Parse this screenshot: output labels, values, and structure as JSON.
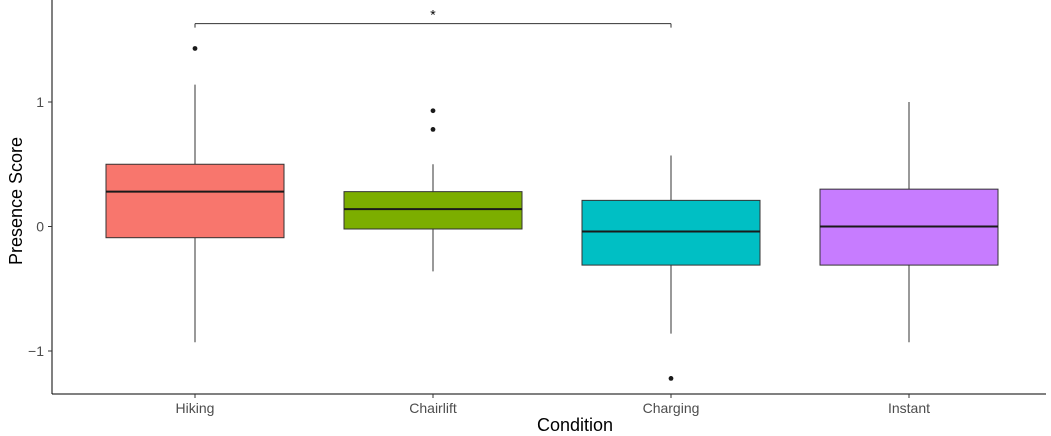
{
  "chart_data": {
    "type": "boxplot",
    "xlabel": "Condition",
    "ylabel": "Presence Score",
    "categories": [
      "Hiking",
      "Chairlift",
      "Charging",
      "Instant"
    ],
    "ylim": [
      -1.35,
      1.8
    ],
    "yticks": [
      {
        "value": -1,
        "label": "−1"
      },
      {
        "value": 0,
        "label": "0"
      },
      {
        "value": 1,
        "label": "1"
      }
    ],
    "boxes": [
      {
        "category": "Hiking",
        "whisker_low": -0.93,
        "q1": -0.09,
        "median": 0.28,
        "q3": 0.5,
        "whisker_high": 1.14,
        "outliers": [
          1.43
        ],
        "color": "#F8766D"
      },
      {
        "category": "Chairlift",
        "whisker_low": -0.36,
        "q1": -0.02,
        "median": 0.14,
        "q3": 0.28,
        "whisker_high": 0.5,
        "outliers": [
          0.93,
          0.78
        ],
        "color": "#7CAE00"
      },
      {
        "category": "Charging",
        "whisker_low": -0.86,
        "q1": -0.31,
        "median": -0.04,
        "q3": 0.21,
        "whisker_high": 0.57,
        "outliers": [
          -1.22
        ],
        "color": "#00BFC4"
      },
      {
        "category": "Instant",
        "whisker_low": -0.93,
        "q1": -0.31,
        "median": 0.0,
        "q3": 0.3,
        "whisker_high": 1.0,
        "outliers": [],
        "color": "#C77CFF"
      }
    ],
    "significance": [
      {
        "from": "Hiking",
        "to": "Charging",
        "label": "*",
        "y": 1.63
      }
    ],
    "grid": false,
    "legend": "none"
  }
}
